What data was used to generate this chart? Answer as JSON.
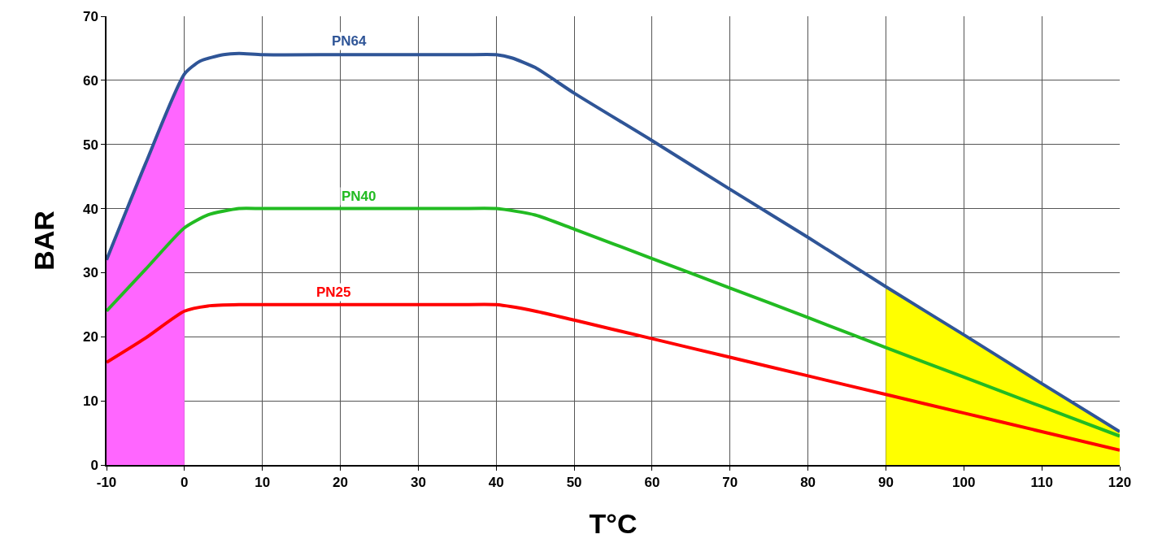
{
  "chart_data": {
    "type": "line",
    "xlabel": "T°C",
    "ylabel": "BAR",
    "xlim": [
      -10,
      120
    ],
    "ylim": [
      0,
      70
    ],
    "xticks": [
      -10,
      0,
      10,
      20,
      30,
      40,
      50,
      60,
      70,
      80,
      90,
      100,
      110,
      120
    ],
    "yticks": [
      0,
      10,
      20,
      30,
      40,
      50,
      60,
      70
    ],
    "grid": true,
    "legend": false,
    "marker": "none",
    "line_style": "solid",
    "series": [
      {
        "type": "area",
        "color": "#ff66ff",
        "x": [
          -10,
          -5,
          0
        ],
        "values": [
          32,
          47,
          61
        ]
      },
      {
        "type": "area",
        "color": "#ffff00",
        "x": [
          90,
          100,
          110,
          120
        ],
        "values": [
          27.8,
          20.3,
          12.7,
          5.2
        ]
      },
      {
        "name": "PN64",
        "color": "#2f5597",
        "x": [
          -10,
          -5,
          0,
          2,
          5,
          7,
          10,
          20,
          30,
          36,
          40,
          42,
          45,
          50,
          60,
          70,
          80,
          90,
          100,
          110,
          120
        ],
        "values": [
          32,
          47,
          61,
          63,
          64,
          64.2,
          64,
          64,
          64,
          64,
          64,
          63.5,
          62,
          58,
          50.6,
          43,
          35.5,
          27.8,
          20.3,
          12.7,
          5.2
        ]
      },
      {
        "name": "PN40",
        "color": "#22bb22",
        "x": [
          -10,
          -5,
          0,
          3,
          7,
          10,
          20,
          35,
          40,
          45,
          50,
          60,
          70,
          80,
          90,
          100,
          110,
          120
        ],
        "values": [
          24,
          30.5,
          37,
          39,
          40,
          40,
          40,
          40,
          40,
          39,
          36.8,
          32.2,
          27.6,
          23,
          18.3,
          13.7,
          9.1,
          4.5
        ]
      },
      {
        "name": "PN25",
        "color": "#ff0000",
        "x": [
          -10,
          -5,
          0,
          3,
          7,
          10,
          20,
          35,
          40,
          45,
          50,
          60,
          70,
          80,
          90,
          100,
          110,
          120
        ],
        "values": [
          16,
          19.8,
          24,
          24.8,
          25,
          25,
          25,
          25,
          25,
          24,
          22.6,
          19.7,
          16.8,
          13.9,
          11,
          8.1,
          5.2,
          2.3
        ]
      }
    ]
  }
}
